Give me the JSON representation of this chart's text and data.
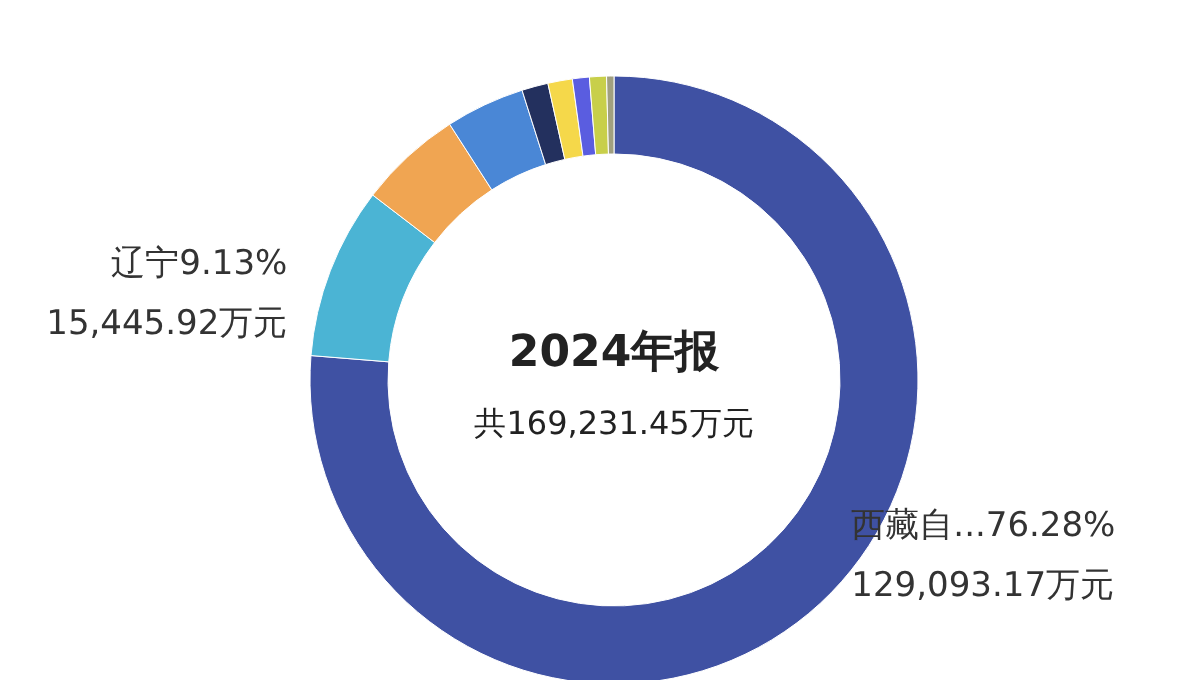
{
  "chart_data": {
    "type": "donut",
    "title": "2024年报",
    "subtitle": "共169,231.45万元",
    "categories": [
      "西藏自...",
      "辽宁",
      null,
      null,
      null,
      null,
      null,
      null,
      null
    ],
    "values": [
      76.28,
      9.13,
      5.5,
      4.2,
      1.4,
      1.3,
      0.9,
      0.9,
      0.39
    ],
    "colors": [
      "#3f51a3",
      "#4bb4d4",
      "#f0a552",
      "#4a87d6",
      "#23305e",
      "#f5d84a",
      "#5a5de0",
      "#c8cf4a",
      "#a09f80"
    ],
    "value_labels": [
      "76.28%\n129,093.17万元",
      "9.13%\n15,445.92万元",
      null,
      null,
      null,
      null,
      null,
      null,
      null
    ]
  }
}
